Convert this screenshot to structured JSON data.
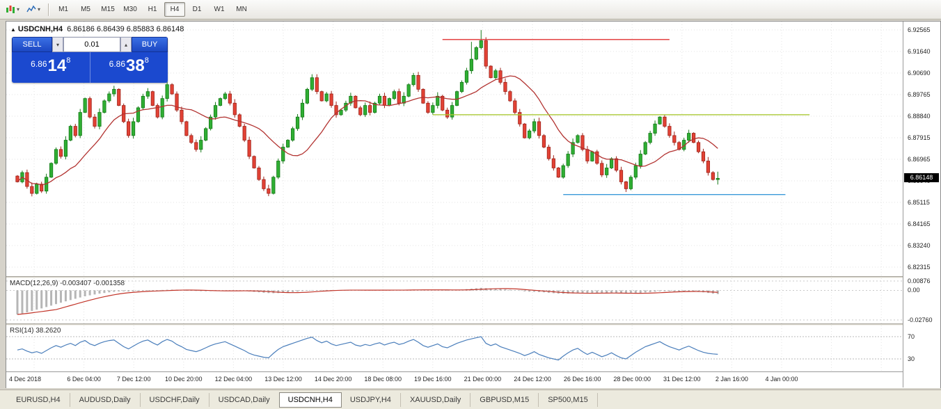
{
  "toolbar": {
    "timeframes": [
      "M1",
      "M5",
      "M15",
      "M30",
      "H1",
      "H4",
      "D1",
      "W1",
      "MN"
    ],
    "active_timeframe": "H4"
  },
  "chart_header": {
    "marker": "▲",
    "symbol": "USDCNH,H4",
    "ohlc_text": "6.86186 6.86439 6.85883 6.86148"
  },
  "trade_panel": {
    "sell_label": "SELL",
    "buy_label": "BUY",
    "volume": "0.01",
    "sell_dropdown_icon": "▾",
    "volume_spinner_icon": "▴",
    "sell_price": {
      "prefix": "6.86",
      "big": "14",
      "sup": "8"
    },
    "buy_price": {
      "prefix": "6.86",
      "big": "38",
      "sup": "8"
    }
  },
  "price_axis": {
    "labels": [
      "6.92565",
      "6.91640",
      "6.90690",
      "6.89765",
      "6.88840",
      "6.87915",
      "6.86965",
      "6.86040",
      "6.85115",
      "6.84165",
      "6.83240",
      "6.82315"
    ],
    "current_price": "6.86148"
  },
  "macd_panel": {
    "label": "MACD(12,26,9) -0.003407 -0.001358",
    "axis_labels": [
      "0.00876",
      "0.00",
      "-0.02760"
    ]
  },
  "rsi_panel": {
    "label": "RSI(14) 38.2620",
    "axis_labels": [
      "70",
      "30"
    ]
  },
  "time_axis": [
    "4 Dec 2018",
    "6 Dec 04:00",
    "7 Dec 12:00",
    "10 Dec 20:00",
    "12 Dec 04:00",
    "13 Dec 12:00",
    "14 Dec 20:00",
    "18 Dec 08:00",
    "19 Dec 16:00",
    "21 Dec 00:00",
    "24 Dec 12:00",
    "26 Dec 16:00",
    "28 Dec 00:00",
    "31 Dec 12:00",
    "2 Jan 16:00",
    "4 Jan 00:00"
  ],
  "tabs": {
    "items": [
      "EURUSD,H4",
      "AUDUSD,Daily",
      "USDCHF,Daily",
      "USDCAD,Daily",
      "USDCNH,H4",
      "USDJPY,H4",
      "XAUUSD,Daily",
      "GBPUSD,M15",
      "SP500,M15"
    ],
    "active": "USDCNH,H4"
  },
  "colors": {
    "bull": "#2fae33",
    "bull_border": "#157a18",
    "bear": "#e24235",
    "bear_border": "#9e231a",
    "ma_line": "#b23230",
    "macd_hist": "#b6b6b6",
    "macd_signal": "#c23428",
    "rsi_line": "#4a7ebb",
    "hline_red": "#e03131",
    "hline_green": "#a9c832",
    "hline_blue": "#3a9ad9",
    "grid": "#e3e3e3"
  },
  "chart_data": {
    "type": "candlestick",
    "symbol": "USDCNH",
    "timeframe": "H4",
    "price_range": [
      6.82315,
      6.92565
    ],
    "ma_period": 13,
    "closes": [
      6.86,
      6.864,
      6.858,
      6.855,
      6.859,
      6.856,
      6.862,
      6.868,
      6.874,
      6.871,
      6.878,
      6.884,
      6.88,
      6.89,
      6.896,
      6.888,
      6.884,
      6.89,
      6.895,
      6.898,
      6.9,
      6.893,
      6.886,
      6.88,
      6.886,
      6.892,
      6.897,
      6.899,
      6.893,
      6.888,
      6.896,
      6.902,
      6.898,
      6.891,
      6.886,
      6.88,
      6.877,
      6.874,
      6.878,
      6.883,
      6.888,
      6.893,
      6.896,
      6.898,
      6.894,
      6.889,
      6.884,
      6.878,
      6.871,
      6.866,
      6.861,
      6.857,
      6.855,
      6.862,
      6.869,
      6.875,
      6.878,
      6.883,
      6.888,
      6.894,
      6.9,
      6.905,
      6.899,
      6.895,
      6.898,
      6.893,
      6.889,
      6.891,
      6.894,
      6.897,
      6.892,
      6.889,
      6.893,
      6.89,
      6.894,
      6.897,
      6.893,
      6.896,
      6.899,
      6.894,
      6.897,
      6.902,
      6.906,
      6.9,
      6.894,
      6.89,
      6.893,
      6.897,
      6.891,
      6.888,
      6.893,
      6.899,
      6.903,
      6.908,
      6.913,
      6.918,
      6.921,
      6.91,
      6.905,
      6.908,
      6.903,
      6.899,
      6.895,
      6.89,
      6.885,
      6.879,
      6.882,
      6.886,
      6.88,
      6.875,
      6.87,
      6.866,
      6.862,
      6.867,
      6.872,
      6.877,
      6.88,
      6.874,
      6.869,
      6.873,
      6.868,
      6.863,
      6.866,
      6.87,
      6.865,
      6.86,
      6.857,
      6.862,
      6.867,
      6.872,
      6.877,
      6.881,
      6.885,
      6.888,
      6.884,
      6.88,
      6.877,
      6.874,
      6.878,
      6.881,
      6.877,
      6.873,
      6.869,
      6.864,
      6.861,
      6.8615
    ],
    "first_open": 6.8625,
    "highs_override": {
      "61": 6.9065,
      "94": 6.9205,
      "96": 6.9256,
      "145": 6.86439
    },
    "lows_override": {
      "52": 6.8538,
      "126": 6.8556,
      "145": 6.85883
    },
    "hlines": [
      {
        "price": 6.9215,
        "from": 88,
        "to": 135,
        "colorKey": "hline_red"
      },
      {
        "price": 6.889,
        "from": 86,
        "to": 164,
        "colorKey": "hline_green"
      },
      {
        "price": 6.8545,
        "from": 113,
        "to": 159,
        "colorKey": "hline_blue"
      }
    ],
    "macd_range": [
      -0.0276,
      0.00876
    ],
    "macd_hist": [
      -0.0225,
      -0.0215,
      -0.0205,
      -0.0192,
      -0.018,
      -0.0168,
      -0.0155,
      -0.0142,
      -0.0128,
      -0.0115,
      -0.0102,
      -0.009,
      -0.0078,
      -0.0066,
      -0.0055,
      -0.0046,
      -0.0038,
      -0.003,
      -0.0024,
      -0.0018,
      -0.0013,
      -0.001,
      -0.0009,
      -0.001,
      -0.0009,
      -0.0007,
      -0.0004,
      -0.0001,
      0.0001,
      0.0002,
      0.0004,
      0.0006,
      0.0007,
      0.0006,
      0.0004,
      0.0001,
      -0.0002,
      -0.0005,
      -0.0007,
      -0.0008,
      -0.0007,
      -0.0005,
      -0.0003,
      -0.0001,
      0.0,
      -0.0001,
      -0.0003,
      -0.0006,
      -0.001,
      -0.0014,
      -0.0018,
      -0.0022,
      -0.0025,
      -0.0026,
      -0.0025,
      -0.0022,
      -0.0019,
      -0.0015,
      -0.0011,
      -0.0007,
      -0.0003,
      0.0001,
      0.0003,
      0.0004,
      0.0004,
      0.0003,
      0.0002,
      0.0002,
      0.0002,
      0.0003,
      0.0003,
      0.0002,
      0.0002,
      0.0002,
      0.0002,
      0.0003,
      0.0003,
      0.0003,
      0.0004,
      0.0003,
      0.0004,
      0.0005,
      0.0007,
      0.0007,
      0.0006,
      0.0004,
      0.0004,
      0.0004,
      0.0003,
      0.0002,
      0.0003,
      0.0005,
      0.0008,
      0.0012,
      0.0016,
      0.002,
      0.0024,
      0.0021,
      0.0018,
      0.0017,
      0.0014,
      0.001,
      0.0006,
      0.0001,
      -0.0004,
      -0.0009,
      -0.0012,
      -0.0013,
      -0.0015,
      -0.0018,
      -0.0022,
      -0.0026,
      -0.003,
      -0.0031,
      -0.003,
      -0.0027,
      -0.0024,
      -0.0023,
      -0.0024,
      -0.0023,
      -0.0024,
      -0.0026,
      -0.0027,
      -0.0026,
      -0.0026,
      -0.0028,
      -0.003,
      -0.0029,
      -0.0027,
      -0.0024,
      -0.002,
      -0.0016,
      -0.0012,
      -0.0009,
      -0.0008,
      -0.0008,
      -0.0009,
      -0.0011,
      -0.0011,
      -0.001,
      -0.0011,
      -0.0014,
      -0.0018,
      -0.0024,
      -0.003,
      -0.0034
    ],
    "macd_signal_period": 9,
    "rsi_range": [
      15,
      85
    ],
    "rsi_levels": [
      70,
      30
    ],
    "rsi": [
      46,
      48,
      44,
      41,
      43,
      40,
      45,
      50,
      54,
      51,
      55,
      58,
      54,
      60,
      63,
      57,
      54,
      58,
      61,
      63,
      64,
      58,
      52,
      48,
      53,
      58,
      62,
      64,
      59,
      55,
      61,
      65,
      62,
      56,
      52,
      47,
      45,
      43,
      46,
      50,
      54,
      57,
      59,
      61,
      57,
      53,
      49,
      45,
      40,
      37,
      35,
      33,
      32,
      40,
      47,
      52,
      55,
      58,
      61,
      64,
      67,
      69,
      63,
      59,
      62,
      57,
      54,
      56,
      58,
      60,
      55,
      53,
      56,
      54,
      57,
      59,
      55,
      58,
      60,
      56,
      58,
      62,
      65,
      60,
      54,
      51,
      54,
      57,
      52,
      50,
      54,
      58,
      61,
      64,
      66,
      68,
      70,
      58,
      54,
      57,
      52,
      49,
      46,
      43,
      40,
      36,
      39,
      43,
      38,
      35,
      32,
      30,
      28,
      35,
      41,
      46,
      49,
      43,
      38,
      42,
      38,
      34,
      37,
      41,
      36,
      32,
      30,
      36,
      42,
      47,
      52,
      55,
      58,
      61,
      56,
      52,
      49,
      46,
      50,
      53,
      49,
      45,
      42,
      40,
      39,
      38.26
    ]
  }
}
